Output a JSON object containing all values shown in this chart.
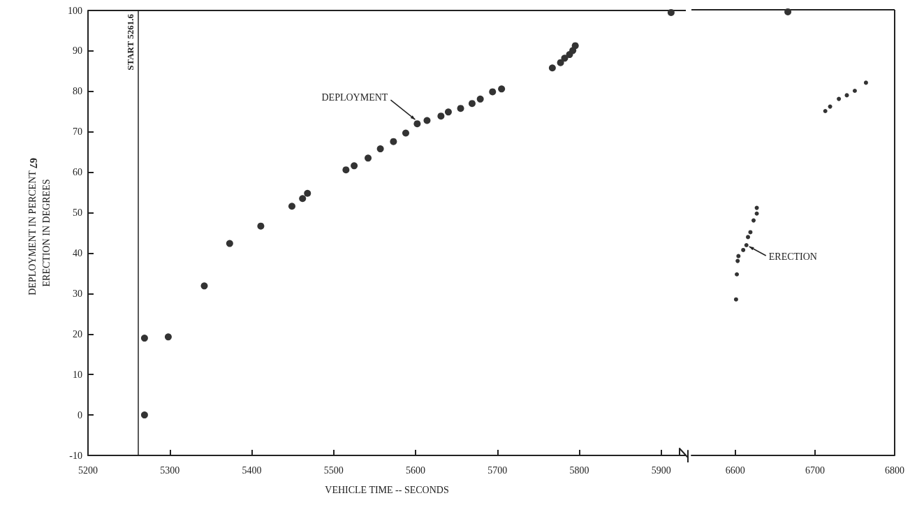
{
  "chart_data": [
    {
      "type": "scatter",
      "xlabel": "VEHICLE TIME -- SECONDS",
      "ylabel": "DEPLOYMENT IN PERCENT\nERECTION IN DEGREES",
      "xlim": [
        5200,
        5930
      ],
      "xticks": [
        5200,
        5300,
        5400,
        5500,
        5600,
        5700,
        5800,
        5900
      ],
      "ylim": [
        -10,
        100
      ],
      "yticks": [
        -10,
        0,
        10,
        20,
        30,
        40,
        50,
        60,
        70,
        80,
        90,
        100
      ],
      "grid": false,
      "marker": "circle",
      "ref_lines": [
        {
          "axis": "x",
          "value": 5261.6,
          "label": "START 5261.6",
          "color": "#222222"
        }
      ],
      "annotations": [
        "67",
        {
          "text": "DEPLOYMENT",
          "x": 5602,
          "y": 72
        }
      ],
      "series": [
        {
          "color": "#333333",
          "x": [
            5269,
            5269,
            5298,
            5342,
            5373,
            5411,
            5449,
            5462,
            5468,
            5515,
            5525,
            5542,
            5557,
            5573,
            5588,
            5602,
            5614,
            5631,
            5640,
            5655,
            5669,
            5679,
            5694,
            5705,
            5767,
            5777,
            5782,
            5788,
            5792,
            5795,
            5912
          ],
          "values": [
            0,
            19,
            19.3,
            31.9,
            42.4,
            46.7,
            51.6,
            53.5,
            54.8,
            60.6,
            61.6,
            63.5,
            65.8,
            67.6,
            69.7,
            72,
            72.8,
            73.9,
            74.9,
            75.8,
            77,
            78.1,
            79.9,
            80.6,
            85.8,
            87.1,
            88.2,
            89.1,
            90.1,
            91.3,
            99.5
          ]
        }
      ]
    },
    {
      "type": "scatter",
      "xlim": [
        6545,
        6800
      ],
      "xticks": [
        6600,
        6700,
        6800
      ],
      "ylim": [
        -10,
        100
      ],
      "yticks": [
        -10,
        0,
        10,
        20,
        30,
        40,
        50,
        60,
        70,
        80,
        90,
        100
      ],
      "tick_labels": "x",
      "grid": false,
      "marker": "circle",
      "annotations": [
        {
          "text": "ERECTION",
          "x": 6614,
          "y": 41.9
        }
      ],
      "series": [
        {
          "color": "#333333",
          "x": [
            6666
          ],
          "values": [
            99.5
          ]
        },
        {
          "color": "#333333",
          "x": [
            6601,
            6602,
            6603,
            6604,
            6610,
            6614,
            6616,
            6619,
            6623,
            6627,
            6627,
            6713,
            6719,
            6730,
            6740,
            6750,
            6764
          ],
          "values": [
            28.5,
            34.7,
            38,
            39.2,
            40.7,
            41.9,
            43.9,
            45.1,
            48,
            49.7,
            51.1,
            75,
            76.1,
            78,
            78.9,
            80,
            82
          ]
        }
      ]
    }
  ]
}
